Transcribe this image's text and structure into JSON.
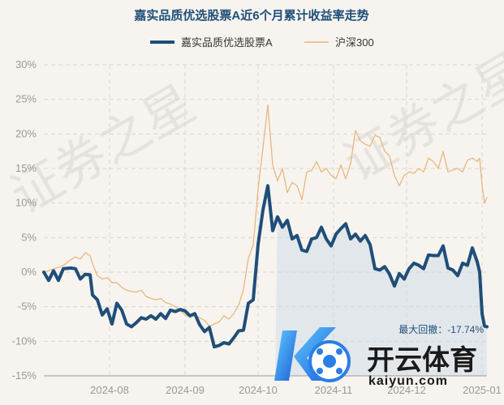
{
  "chart_data": {
    "type": "line",
    "title": "嘉实品质优选股票A近6个月累计收益率走势",
    "xlabel": "",
    "ylabel": "",
    "unit": "%",
    "ylim": [
      -15,
      30
    ],
    "yticks": [
      30,
      25,
      20,
      15,
      10,
      5,
      0,
      -5,
      -10,
      -15
    ],
    "ytick_labels": [
      "30%",
      "25%",
      "20%",
      "15%",
      "10%",
      "5%",
      "0%",
      "-5%",
      "-10%",
      "-15%"
    ],
    "x_start": "2024-07-05",
    "x_end": "2025-01-03",
    "xticks": [
      "2024-08-01",
      "2024-09-01",
      "2024-10-01",
      "2024-11-01",
      "2024-12-01",
      "2025-01-01"
    ],
    "xtick_labels": [
      "2024-08",
      "2024-09",
      "2024-10",
      "2024-11",
      "2024-12",
      "2025-01"
    ],
    "grid": true,
    "legend": "top-center",
    "drawdown_region": {
      "start": "2024-10-08",
      "end": "2025-01-03"
    },
    "annotation": "最大回撤：-17.74%",
    "series": [
      {
        "name": "嘉实品质优选股票A",
        "color": "#1f4e79",
        "points": [
          [
            "2024-07-05",
            0.0
          ],
          [
            "2024-07-07",
            -1.2
          ],
          [
            "2024-07-09",
            0.2
          ],
          [
            "2024-07-11",
            -1.2
          ],
          [
            "2024-07-13",
            0.5
          ],
          [
            "2024-07-16",
            0.6
          ],
          [
            "2024-07-18",
            0.5
          ],
          [
            "2024-07-20",
            -1.0
          ],
          [
            "2024-07-22",
            -0.3
          ],
          [
            "2024-07-24",
            -0.4
          ],
          [
            "2024-07-25",
            -3.3
          ],
          [
            "2024-07-27",
            -4.0
          ],
          [
            "2024-07-29",
            -6.2
          ],
          [
            "2024-07-31",
            -5.3
          ],
          [
            "2024-08-02",
            -7.5
          ],
          [
            "2024-08-04",
            -4.5
          ],
          [
            "2024-08-06",
            -5.5
          ],
          [
            "2024-08-08",
            -7.5
          ],
          [
            "2024-08-10",
            -7.9
          ],
          [
            "2024-08-12",
            -7.3
          ],
          [
            "2024-08-14",
            -6.6
          ],
          [
            "2024-08-16",
            -6.8
          ],
          [
            "2024-08-18",
            -6.3
          ],
          [
            "2024-08-20",
            -6.8
          ],
          [
            "2024-08-22",
            -6.0
          ],
          [
            "2024-08-24",
            -6.7
          ],
          [
            "2024-08-26",
            -5.5
          ],
          [
            "2024-08-28",
            -5.7
          ],
          [
            "2024-08-30",
            -5.4
          ],
          [
            "2024-09-01",
            -5.6
          ],
          [
            "2024-09-03",
            -6.3
          ],
          [
            "2024-09-05",
            -6.0
          ],
          [
            "2024-09-07",
            -7.6
          ],
          [
            "2024-09-09",
            -8.6
          ],
          [
            "2024-09-11",
            -8.0
          ],
          [
            "2024-09-13",
            -10.8
          ],
          [
            "2024-09-15",
            -10.6
          ],
          [
            "2024-09-17",
            -10.2
          ],
          [
            "2024-09-19",
            -10.4
          ],
          [
            "2024-09-21",
            -9.5
          ],
          [
            "2024-09-23",
            -8.5
          ],
          [
            "2024-09-25",
            -8.4
          ],
          [
            "2024-09-27",
            -4.5
          ],
          [
            "2024-09-29",
            -4.0
          ],
          [
            "2024-10-01",
            4.0
          ],
          [
            "2024-10-03",
            9.0
          ],
          [
            "2024-10-05",
            12.5
          ],
          [
            "2024-10-07",
            6.0
          ],
          [
            "2024-10-09",
            8.0
          ],
          [
            "2024-10-11",
            6.5
          ],
          [
            "2024-10-13",
            7.5
          ],
          [
            "2024-10-15",
            4.8
          ],
          [
            "2024-10-17",
            5.3
          ],
          [
            "2024-10-19",
            3.2
          ],
          [
            "2024-10-21",
            3.0
          ],
          [
            "2024-10-23",
            4.8
          ],
          [
            "2024-10-25",
            5.0
          ],
          [
            "2024-10-27",
            6.5
          ],
          [
            "2024-10-29",
            4.8
          ],
          [
            "2024-10-31",
            3.8
          ],
          [
            "2024-11-02",
            5.5
          ],
          [
            "2024-11-04",
            6.3
          ],
          [
            "2024-11-06",
            7.0
          ],
          [
            "2024-11-08",
            4.8
          ],
          [
            "2024-11-10",
            5.5
          ],
          [
            "2024-11-12",
            4.5
          ],
          [
            "2024-11-14",
            5.3
          ],
          [
            "2024-11-16",
            4.0
          ],
          [
            "2024-11-18",
            0.5
          ],
          [
            "2024-11-20",
            0.3
          ],
          [
            "2024-11-22",
            0.8
          ],
          [
            "2024-11-24",
            -0.3
          ],
          [
            "2024-11-26",
            -2.0
          ],
          [
            "2024-11-28",
            -0.2
          ],
          [
            "2024-11-30",
            -1.0
          ],
          [
            "2024-12-02",
            0.5
          ],
          [
            "2024-12-04",
            1.3
          ],
          [
            "2024-12-06",
            1.0
          ],
          [
            "2024-12-08",
            0.5
          ],
          [
            "2024-12-10",
            2.5
          ],
          [
            "2024-12-12",
            2.4
          ],
          [
            "2024-12-14",
            2.4
          ],
          [
            "2024-12-16",
            3.8
          ],
          [
            "2024-12-18",
            0.6
          ],
          [
            "2024-12-20",
            0.3
          ],
          [
            "2024-12-22",
            -0.5
          ],
          [
            "2024-12-24",
            1.3
          ],
          [
            "2024-12-26",
            1.0
          ],
          [
            "2024-12-28",
            3.5
          ],
          [
            "2024-12-30",
            1.5
          ],
          [
            "2024-12-31",
            0.0
          ],
          [
            "2025-01-01",
            -6.0
          ],
          [
            "2025-01-02",
            -7.8
          ],
          [
            "2025-01-03",
            -7.9
          ]
        ]
      },
      {
        "name": "沪深300",
        "color": "#e8b77f",
        "points": [
          [
            "2024-07-05",
            0.0
          ],
          [
            "2024-07-08",
            0.3
          ],
          [
            "2024-07-10",
            0.6
          ],
          [
            "2024-07-12",
            0.8
          ],
          [
            "2024-07-14",
            1.2
          ],
          [
            "2024-07-16",
            1.8
          ],
          [
            "2024-07-18",
            2.2
          ],
          [
            "2024-07-20",
            1.9
          ],
          [
            "2024-07-22",
            2.8
          ],
          [
            "2024-07-24",
            2.4
          ],
          [
            "2024-07-25",
            1.2
          ],
          [
            "2024-07-27",
            -0.5
          ],
          [
            "2024-07-29",
            -1.0
          ],
          [
            "2024-07-31",
            -0.8
          ],
          [
            "2024-08-02",
            -1.5
          ],
          [
            "2024-08-04",
            -1.5
          ],
          [
            "2024-08-06",
            -2.2
          ],
          [
            "2024-08-08",
            -2.6
          ],
          [
            "2024-08-10",
            -2.8
          ],
          [
            "2024-08-12",
            -2.9
          ],
          [
            "2024-08-14",
            -2.6
          ],
          [
            "2024-08-16",
            -3.5
          ],
          [
            "2024-08-18",
            -3.8
          ],
          [
            "2024-08-20",
            -4.0
          ],
          [
            "2024-08-22",
            -3.8
          ],
          [
            "2024-08-24",
            -4.4
          ],
          [
            "2024-08-26",
            -4.6
          ],
          [
            "2024-08-28",
            -5.0
          ],
          [
            "2024-08-30",
            -5.5
          ],
          [
            "2024-09-01",
            -6.2
          ],
          [
            "2024-09-03",
            -6.5
          ],
          [
            "2024-09-05",
            -6.3
          ],
          [
            "2024-09-07",
            -6.6
          ],
          [
            "2024-09-09",
            -7.0
          ],
          [
            "2024-09-11",
            -7.8
          ],
          [
            "2024-09-13",
            -7.5
          ],
          [
            "2024-09-15",
            -7.2
          ],
          [
            "2024-09-17",
            -6.3
          ],
          [
            "2024-09-19",
            -6.8
          ],
          [
            "2024-09-21",
            -6.0
          ],
          [
            "2024-09-23",
            -4.8
          ],
          [
            "2024-09-25",
            -2.5
          ],
          [
            "2024-09-27",
            2.0
          ],
          [
            "2024-09-29",
            4.0
          ],
          [
            "2024-10-01",
            12.0
          ],
          [
            "2024-10-03",
            18.0
          ],
          [
            "2024-10-05",
            24.2
          ],
          [
            "2024-10-07",
            15.5
          ],
          [
            "2024-10-09",
            13.2
          ],
          [
            "2024-10-11",
            15.0
          ],
          [
            "2024-10-13",
            11.5
          ],
          [
            "2024-10-15",
            13.0
          ],
          [
            "2024-10-17",
            12.5
          ],
          [
            "2024-10-19",
            10.5
          ],
          [
            "2024-10-21",
            14.5
          ],
          [
            "2024-10-23",
            14.7
          ],
          [
            "2024-10-25",
            16.0
          ],
          [
            "2024-10-27",
            14.5
          ],
          [
            "2024-10-29",
            15.0
          ],
          [
            "2024-10-31",
            14.0
          ],
          [
            "2024-11-02",
            13.5
          ],
          [
            "2024-11-04",
            15.5
          ],
          [
            "2024-11-06",
            13.5
          ],
          [
            "2024-11-08",
            15.7
          ],
          [
            "2024-11-10",
            20.5
          ],
          [
            "2024-11-12",
            19.0
          ],
          [
            "2024-11-14",
            18.5
          ],
          [
            "2024-11-16",
            18.2
          ],
          [
            "2024-11-18",
            19.8
          ],
          [
            "2024-11-20",
            19.5
          ],
          [
            "2024-11-22",
            17.5
          ],
          [
            "2024-11-24",
            16.8
          ],
          [
            "2024-11-26",
            14.0
          ],
          [
            "2024-11-28",
            12.5
          ],
          [
            "2024-11-30",
            14.0
          ],
          [
            "2024-12-02",
            14.5
          ],
          [
            "2024-12-04",
            14.3
          ],
          [
            "2024-12-06",
            15.0
          ],
          [
            "2024-12-08",
            14.5
          ],
          [
            "2024-12-10",
            16.5
          ],
          [
            "2024-12-12",
            16.0
          ],
          [
            "2024-12-14",
            15.0
          ],
          [
            "2024-12-16",
            17.5
          ],
          [
            "2024-12-18",
            14.5
          ],
          [
            "2024-12-20",
            14.8
          ],
          [
            "2024-12-22",
            15.0
          ],
          [
            "2024-12-24",
            14.5
          ],
          [
            "2024-12-26",
            16.2
          ],
          [
            "2024-12-28",
            16.5
          ],
          [
            "2024-12-30",
            16.0
          ],
          [
            "2024-12-31",
            16.5
          ],
          [
            "2025-01-01",
            12.5
          ],
          [
            "2025-01-02",
            10.0
          ],
          [
            "2025-01-03",
            10.8
          ]
        ]
      }
    ]
  },
  "watermark": {
    "text": "证券之星"
  },
  "logo": {
    "brand": "开云体育",
    "domain": "kaiyun.com"
  }
}
